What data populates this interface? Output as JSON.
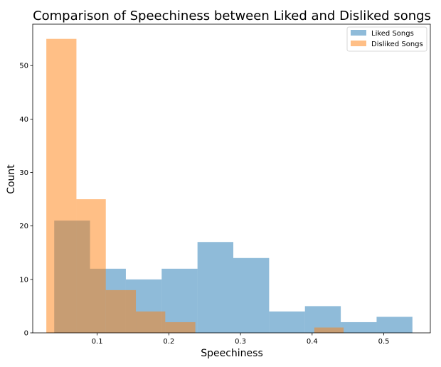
{
  "chart_data": {
    "type": "bar",
    "title": "Comparison of Speechiness between Liked and Disliked songs",
    "xlabel": "Speechiness",
    "ylabel": "Count",
    "xlim": [
      0.01,
      0.565
    ],
    "ylim": [
      0,
      57.75
    ],
    "xticks": [
      0.1,
      0.2,
      0.3,
      0.4,
      0.5
    ],
    "xtick_labels": [
      "0.1",
      "0.2",
      "0.3",
      "0.4",
      "0.5"
    ],
    "yticks": [
      0,
      10,
      20,
      30,
      40,
      50
    ],
    "ytick_labels": [
      "0",
      "10",
      "20",
      "30",
      "40",
      "50"
    ],
    "grid": false,
    "legend_position": "top-right",
    "series": [
      {
        "name": "Liked Songs",
        "color": "#1f77b4",
        "opacity": 0.5,
        "bin_edges": [
          0.04,
          0.09,
          0.14,
          0.19,
          0.24,
          0.29,
          0.34,
          0.39,
          0.44,
          0.49,
          0.54
        ],
        "counts": [
          21,
          12,
          10,
          12,
          17,
          14,
          4,
          5,
          2,
          3
        ]
      },
      {
        "name": "Disliked Songs",
        "color": "#ff7f0e",
        "opacity": 0.5,
        "bin_edges": [
          0.029,
          0.071,
          0.112,
          0.154,
          0.195,
          0.237,
          0.278,
          0.32,
          0.361,
          0.403,
          0.444
        ],
        "counts": [
          55,
          25,
          8,
          4,
          2,
          0,
          0,
          0,
          0,
          1
        ]
      }
    ]
  }
}
